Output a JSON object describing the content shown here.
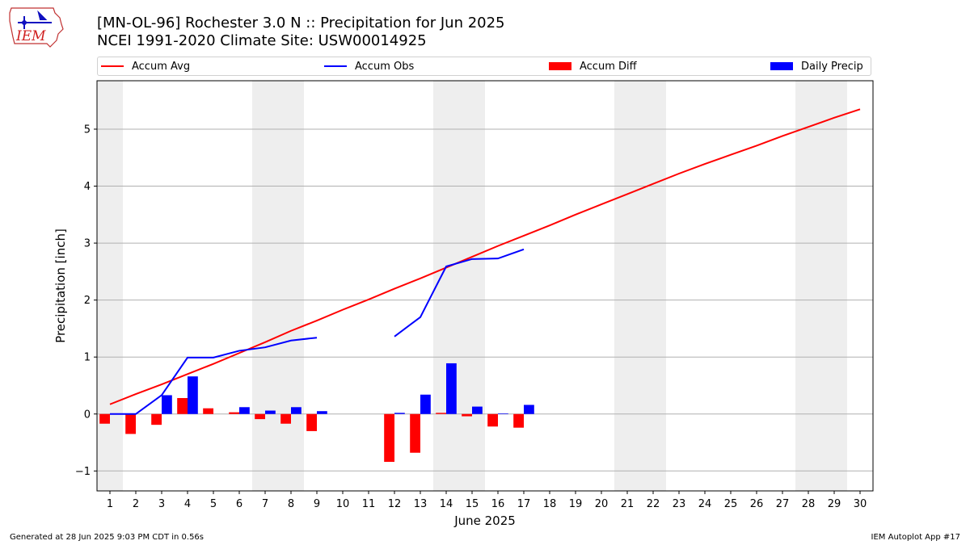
{
  "logo": {
    "text": "IEM"
  },
  "header": {
    "title_line1": "[MN-OL-96] Rochester 3.0 N :: Precipitation for Jun 2025",
    "title_line2": "NCEI 1991-2020 Climate Site: USW00014925"
  },
  "legend": {
    "items": [
      {
        "label": "Accum Avg",
        "kind": "line",
        "color": "#ff0000"
      },
      {
        "label": "Accum Obs",
        "kind": "line",
        "color": "#0000ff"
      },
      {
        "label": "Accum Diff",
        "kind": "bar",
        "color": "#ff0000"
      },
      {
        "label": "Daily Precip",
        "kind": "bar",
        "color": "#0000ff"
      }
    ]
  },
  "chart_data": {
    "type": "bar",
    "xlabel": "June 2025",
    "ylabel": "Precipitation [inch]",
    "x": [
      1,
      2,
      3,
      4,
      5,
      6,
      7,
      8,
      9,
      10,
      11,
      12,
      13,
      14,
      15,
      16,
      17,
      18,
      19,
      20,
      21,
      22,
      23,
      24,
      25,
      26,
      27,
      28,
      29,
      30
    ],
    "xlim": [
      0.5,
      30.5
    ],
    "ylim": [
      -1.35,
      5.85
    ],
    "yticks": [
      -1,
      0,
      1,
      2,
      3,
      4,
      5
    ],
    "ytick_labels": [
      "−1",
      "0",
      "1",
      "2",
      "3",
      "4",
      "5"
    ],
    "grid": "horizontal",
    "weekend_shading": [
      [
        0.5,
        1.5
      ],
      [
        6.5,
        8.5
      ],
      [
        13.5,
        15.5
      ],
      [
        20.5,
        22.5
      ],
      [
        27.5,
        29.5
      ]
    ],
    "series": [
      {
        "name": "Accum Avg",
        "kind": "line",
        "color": "#ff0000",
        "values": [
          0.17,
          0.35,
          0.52,
          0.7,
          0.88,
          1.07,
          1.26,
          1.46,
          1.64,
          1.83,
          2.01,
          2.2,
          2.38,
          2.57,
          2.76,
          2.95,
          3.13,
          3.31,
          3.5,
          3.68,
          3.86,
          4.04,
          4.22,
          4.39,
          4.55,
          4.71,
          4.88,
          5.04,
          5.2,
          5.35
        ]
      },
      {
        "name": "Accum Obs",
        "kind": "line",
        "color": "#0000ff",
        "values": [
          0.0,
          0.0,
          0.33,
          0.99,
          0.99,
          1.11,
          1.17,
          1.29,
          1.34,
          null,
          null,
          1.36,
          1.7,
          2.59,
          2.72,
          2.73,
          2.89,
          null,
          null,
          null,
          null,
          null,
          null,
          null,
          null,
          null,
          null,
          null,
          null,
          null
        ]
      },
      {
        "name": "Accum Diff",
        "kind": "bar",
        "color": "#ff0000",
        "values": [
          -0.17,
          -0.35,
          -0.19,
          0.28,
          0.1,
          0.03,
          -0.09,
          -0.17,
          -0.3,
          null,
          null,
          -0.84,
          -0.68,
          0.02,
          -0.04,
          -0.22,
          -0.24,
          null,
          null,
          null,
          null,
          null,
          null,
          null,
          null,
          null,
          null,
          null,
          null,
          null
        ]
      },
      {
        "name": "Daily Precip",
        "kind": "bar",
        "color": "#0000ff",
        "values": [
          0.0,
          0.0,
          0.33,
          0.66,
          0.0,
          0.12,
          0.06,
          0.12,
          0.05,
          null,
          null,
          0.02,
          0.34,
          0.89,
          0.13,
          0.01,
          0.16,
          null,
          null,
          null,
          null,
          null,
          null,
          null,
          null,
          null,
          null,
          null,
          null,
          null
        ]
      }
    ]
  },
  "footer": {
    "left": "Generated at 28 Jun 2025 9:03 PM CDT in 0.56s",
    "right": "IEM Autoplot App #17"
  }
}
